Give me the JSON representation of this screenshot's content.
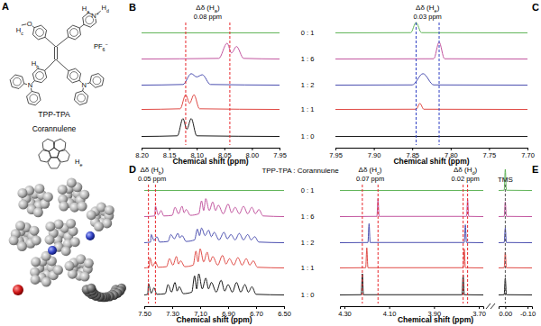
{
  "chart_data": [
    {
      "type": "line",
      "title": "B",
      "xlabel": "Chemical shift (ppm)",
      "xlim": [
        8.2,
        7.95
      ],
      "xticks": [
        {
          "value": 8.2,
          "label": "8.20"
        },
        8.15,
        {
          "value": 8.1,
          "label": "8.10"
        },
        8.05,
        {
          "value": 8.0,
          "label": "8.00"
        },
        7.95
      ],
      "ylim": [
        0,
        1
      ],
      "tick_labels": "x",
      "annotations": [
        {
          "label": "Δδ (Ha)",
          "shift": "0.08 ppm",
          "lines": [
            8.12,
            8.04
          ],
          "color": "#e8262b"
        }
      ],
      "series": [
        {
          "color": "#62b55a",
          "x": [
            8.2,
            7.95
          ],
          "values": [
            0.02,
            0.02
          ]
        },
        {
          "color": "#c2559f",
          "x": [
            8.2,
            8.06,
            8.045,
            8.037,
            8.028,
            8.015,
            7.95
          ],
          "values": [
            0.02,
            0.05,
            0.75,
            0.3,
            0.6,
            0.05,
            0.02
          ]
        },
        {
          "color": "#4b4fb0",
          "x": [
            8.2,
            8.125,
            8.11,
            8.1,
            8.09,
            8.075,
            7.95
          ],
          "values": [
            0.02,
            0.05,
            0.55,
            0.4,
            0.5,
            0.05,
            0.02
          ]
        },
        {
          "color": "#e04b46",
          "x": [
            8.2,
            8.13,
            8.12,
            8.113,
            8.105,
            8.095,
            7.95
          ],
          "values": [
            0.02,
            0.05,
            0.7,
            0.3,
            0.7,
            0.05,
            0.02
          ]
        },
        {
          "color": "#1a1a1a",
          "x": [
            8.2,
            8.135,
            8.125,
            8.118,
            8.11,
            8.1,
            7.95
          ],
          "values": [
            0.02,
            0.05,
            0.85,
            0.35,
            0.85,
            0.05,
            0.02
          ]
        }
      ]
    },
    {
      "type": "line",
      "title": "C",
      "xlabel": "Chemical shift (ppm)",
      "xlim": [
        7.95,
        7.7
      ],
      "xticks": [
        7.95,
        {
          "value": 7.9,
          "label": "7.90"
        },
        7.85,
        {
          "value": 7.8,
          "label": "7.80"
        },
        7.75,
        {
          "value": 7.7,
          "label": "7.70"
        }
      ],
      "ylim": [
        0,
        1
      ],
      "tick_labels": "x",
      "annotations": [
        {
          "label": "Δδ (He)",
          "shift": "0.03 ppm",
          "lines": [
            7.845,
            7.815
          ],
          "color": "#2f3fc4"
        }
      ],
      "series": [
        {
          "color": "#62b55a",
          "x": [
            7.95,
            7.852,
            7.845,
            7.838,
            7.7
          ],
          "values": [
            0.02,
            0.03,
            0.5,
            0.03,
            0.02
          ]
        },
        {
          "color": "#c2559f",
          "x": [
            7.95,
            7.822,
            7.815,
            7.808,
            7.7
          ],
          "values": [
            0.02,
            0.03,
            0.8,
            0.03,
            0.02
          ]
        },
        {
          "color": "#4b4fb0",
          "x": [
            7.95,
            7.85,
            7.836,
            7.822,
            7.7
          ],
          "values": [
            0.02,
            0.03,
            0.55,
            0.03,
            0.02
          ]
        },
        {
          "color": "#e04b46",
          "x": [
            7.95,
            7.845,
            7.84,
            7.835,
            7.7
          ],
          "values": [
            0.02,
            0.03,
            0.3,
            0.03,
            0.02
          ]
        },
        {
          "color": "#1a1a1a",
          "x": [
            7.95,
            7.7
          ],
          "values": [
            0.02,
            0.02
          ]
        }
      ]
    },
    {
      "type": "line",
      "title": "D",
      "xlabel": "Chemical shift (ppm)",
      "xlim": [
        7.5,
        6.5
      ],
      "xticks": [
        {
          "value": 7.5,
          "label": "7.50"
        },
        {
          "value": 7.3,
          "label": "7.30"
        },
        {
          "value": 7.1,
          "label": "7.10"
        },
        {
          "value": 6.9,
          "label": "6.90"
        },
        {
          "value": 6.7,
          "label": "6.70"
        },
        {
          "value": 6.5,
          "label": "6.50"
        }
      ],
      "ylim": [
        0,
        1
      ],
      "tick_labels": "x",
      "annotations": [
        {
          "label": "Δδ (Hb)",
          "shift": "0.05 ppm",
          "lines": [
            7.47,
            7.42
          ],
          "color": "#e8262b"
        }
      ],
      "series": [
        {
          "color": "#62b55a",
          "x": [
            7.5,
            6.5
          ],
          "values": [
            0.02,
            0.02
          ]
        },
        {
          "color": "#c2559f",
          "x": [
            7.5,
            7.425,
            7.42,
            7.4,
            7.38,
            7.36,
            7.3,
            7.28,
            7.255,
            7.23,
            7.215,
            7.2,
            7.17,
            7.11,
            7.09,
            7.075,
            7.06,
            7.035,
            7.01,
            6.99,
            6.97,
            6.935,
            6.9,
            6.875,
            6.85,
            6.82,
            6.79,
            6.76,
            6.73,
            6.705,
            6.68,
            6.65,
            6.5
          ],
          "values": [
            0.02,
            0.05,
            0.5,
            0.1,
            0.3,
            0.05,
            0.08,
            0.45,
            0.15,
            0.5,
            0.2,
            0.35,
            0.08,
            0.15,
            0.75,
            0.3,
            0.85,
            0.3,
            0.7,
            0.3,
            0.55,
            0.15,
            0.6,
            0.2,
            0.45,
            0.15,
            0.5,
            0.15,
            0.45,
            0.15,
            0.35,
            0.05,
            0.02
          ]
        },
        {
          "color": "#4b4fb0",
          "x": [
            7.5,
            7.455,
            7.45,
            7.43,
            7.41,
            7.39,
            7.33,
            7.31,
            7.285,
            7.26,
            7.245,
            7.23,
            7.2,
            7.14,
            7.12,
            7.105,
            7.09,
            7.065,
            7.04,
            7.02,
            7.0,
            6.965,
            6.93,
            6.905,
            6.88,
            6.85,
            6.82,
            6.79,
            6.76,
            6.735,
            6.71,
            6.68,
            6.5
          ],
          "values": [
            0.02,
            0.05,
            0.4,
            0.12,
            0.3,
            0.05,
            0.08,
            0.4,
            0.2,
            0.45,
            0.25,
            0.35,
            0.08,
            0.15,
            0.65,
            0.35,
            0.7,
            0.35,
            0.6,
            0.3,
            0.5,
            0.15,
            0.5,
            0.2,
            0.4,
            0.15,
            0.45,
            0.15,
            0.4,
            0.15,
            0.3,
            0.05,
            0.02
          ]
        },
        {
          "color": "#e04b46",
          "x": [
            7.5,
            7.465,
            7.46,
            7.44,
            7.42,
            7.4,
            7.34,
            7.32,
            7.295,
            7.27,
            7.255,
            7.24,
            7.21,
            7.15,
            7.13,
            7.115,
            7.1,
            7.075,
            7.05,
            7.03,
            7.01,
            6.975,
            6.94,
            6.915,
            6.89,
            6.86,
            6.83,
            6.8,
            6.77,
            6.745,
            6.72,
            6.69,
            6.5
          ],
          "values": [
            0.02,
            0.05,
            0.5,
            0.1,
            0.3,
            0.05,
            0.08,
            0.45,
            0.15,
            0.55,
            0.2,
            0.35,
            0.08,
            0.15,
            0.8,
            0.3,
            0.9,
            0.3,
            0.75,
            0.3,
            0.55,
            0.15,
            0.6,
            0.2,
            0.45,
            0.15,
            0.5,
            0.15,
            0.45,
            0.15,
            0.35,
            0.05,
            0.02
          ]
        },
        {
          "color": "#1a1a1a",
          "x": [
            7.5,
            7.475,
            7.47,
            7.45,
            7.43,
            7.41,
            7.35,
            7.33,
            7.305,
            7.28,
            7.265,
            7.25,
            7.22,
            7.16,
            7.14,
            7.125,
            7.11,
            7.085,
            7.06,
            7.04,
            7.02,
            6.985,
            6.95,
            6.925,
            6.9,
            6.87,
            6.84,
            6.81,
            6.78,
            6.755,
            6.73,
            6.7,
            6.5
          ],
          "values": [
            0.02,
            0.05,
            0.55,
            0.1,
            0.35,
            0.05,
            0.08,
            0.5,
            0.15,
            0.6,
            0.2,
            0.4,
            0.08,
            0.15,
            0.9,
            0.3,
            1.0,
            0.3,
            0.8,
            0.3,
            0.6,
            0.15,
            0.7,
            0.2,
            0.5,
            0.15,
            0.6,
            0.15,
            0.5,
            0.15,
            0.4,
            0.05,
            0.02
          ]
        }
      ]
    },
    {
      "type": "line",
      "title": "E",
      "xlabel": "Chemical shift (ppm)",
      "xlim": [
        4.32,
        3.68
      ],
      "xticks": [
        {
          "value": 4.3,
          "label": "4.30"
        },
        {
          "value": 4.1,
          "label": "4.10"
        },
        {
          "value": 3.9,
          "label": "3.90"
        },
        {
          "value": 3.7,
          "label": "3.70"
        }
      ],
      "ylim": [
        0,
        1
      ],
      "tick_labels": "x",
      "annotations": [
        {
          "label": "Δδ (Hc)",
          "shift": "0.07 ppm",
          "lines": [
            4.22,
            4.15
          ],
          "color": "#e8262b"
        },
        {
          "label": "Δδ (Hd)",
          "shift": "0.02 ppm",
          "lines": [
            3.77,
            3.75
          ],
          "color": "#e8262b"
        }
      ],
      "series": [
        {
          "color": "#62b55a",
          "x": [
            4.32,
            3.68
          ],
          "values": [
            0.02,
            0.02
          ]
        },
        {
          "color": "#c2559f",
          "x": [
            4.32,
            4.155,
            4.15,
            4.145,
            3.755,
            3.75,
            3.745,
            3.68
          ],
          "values": [
            0.02,
            0.03,
            0.85,
            0.03,
            0.03,
            0.8,
            0.03,
            0.02
          ]
        },
        {
          "color": "#4b4fb0",
          "x": [
            4.32,
            4.195,
            4.19,
            4.185,
            3.765,
            3.76,
            3.755,
            3.68
          ],
          "values": [
            0.02,
            0.03,
            0.9,
            0.03,
            0.03,
            0.85,
            0.03,
            0.02
          ]
        },
        {
          "color": "#e04b46",
          "x": [
            4.32,
            4.205,
            4.2,
            4.195,
            3.77,
            3.765,
            3.76,
            3.68
          ],
          "values": [
            0.02,
            0.03,
            0.95,
            0.03,
            0.03,
            0.9,
            0.03,
            0.02
          ]
        },
        {
          "color": "#1a1a1a",
          "x": [
            4.32,
            4.225,
            4.22,
            4.215,
            3.775,
            3.77,
            3.765,
            3.68
          ],
          "values": [
            0.02,
            0.03,
            1.0,
            0.03,
            0.03,
            0.95,
            0.03,
            0.02
          ]
        }
      ]
    },
    {
      "type": "line",
      "xlim": [
        0.03,
        -0.12
      ],
      "xticks": [
        {
          "value": 0,
          "label": "0.00"
        },
        {
          "value": -0.1,
          "label": "-0.10"
        }
      ],
      "ylim": [
        0,
        1
      ],
      "tick_labels": "x",
      "annotations": [
        {
          "label": "TMS",
          "lines": [
            0
          ],
          "color": "#555555"
        }
      ],
      "series": [
        {
          "color": "#62b55a",
          "x": [
            0.03,
            0.005,
            0,
            -0.005,
            -0.12
          ],
          "values": [
            0.02,
            0.03,
            1.0,
            0.03,
            0.02
          ]
        },
        {
          "color": "#c2559f",
          "x": [
            0.03,
            0.005,
            0,
            -0.005,
            -0.12
          ],
          "values": [
            0.02,
            0.03,
            0.7,
            0.03,
            0.02
          ]
        },
        {
          "color": "#4b4fb0",
          "x": [
            0.03,
            0.005,
            0,
            -0.005,
            -0.12
          ],
          "values": [
            0.02,
            0.03,
            0.7,
            0.03,
            0.02
          ]
        },
        {
          "color": "#e04b46",
          "x": [
            0.03,
            0.005,
            0,
            -0.005,
            -0.12
          ],
          "values": [
            0.02,
            0.03,
            0.75,
            0.03,
            0.02
          ]
        },
        {
          "color": "#1a1a1a",
          "x": [
            0.03,
            0.005,
            0,
            -0.005,
            -0.12
          ],
          "values": [
            0.02,
            0.03,
            0.8,
            0.03,
            0.02
          ]
        }
      ]
    }
  ],
  "ratio_key": {
    "title": "TPP-TPA : Corannulene",
    "entries": [
      "0 : 1",
      "1 : 6",
      "1 : 2",
      "1 : 1",
      "1 : 0"
    ]
  },
  "structures": {
    "label": "A",
    "molecules": [
      {
        "name": "TPP-TPA",
        "counterion": "PF6−",
        "atoms": [
          "O",
          "Hc",
          "Ha",
          "N+",
          "Hd",
          "N",
          "N",
          "Hb"
        ]
      },
      {
        "name": "Corannulene",
        "atoms": [
          "He"
        ]
      }
    ]
  }
}
